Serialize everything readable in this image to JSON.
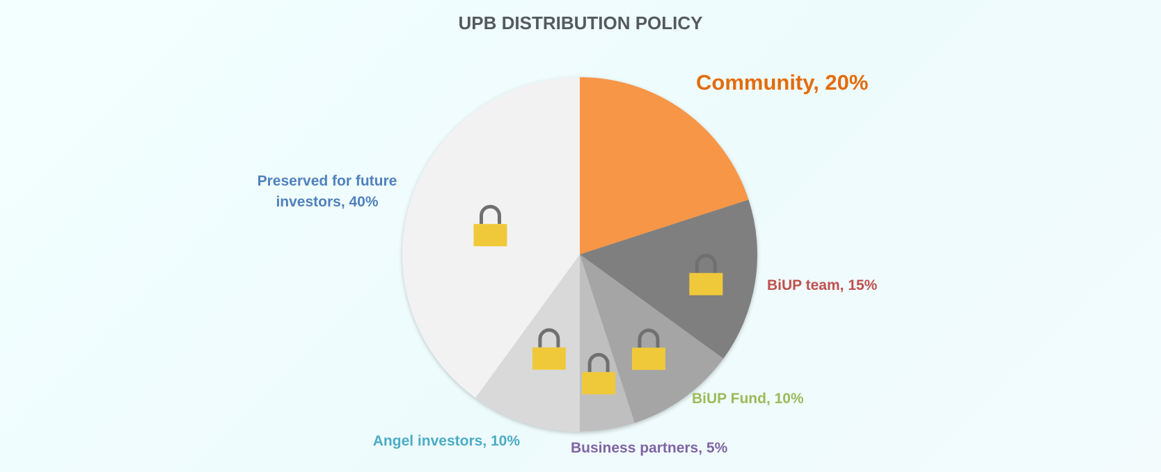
{
  "chart_data": {
    "type": "pie",
    "title": "UPB DISTRIBUTION POLICY",
    "start_angle_deg": 0,
    "direction": "clockwise",
    "slices": [
      {
        "name": "Community",
        "value": 20,
        "label_lines": [
          "Community, 20%"
        ],
        "color": "#f79646",
        "label_color": "#e36c0a",
        "locked": false,
        "emphasis": true
      },
      {
        "name": "BiUP team",
        "value": 15,
        "label_lines": [
          "BiUP team, 15%"
        ],
        "color": "#7f7f7f",
        "label_color": "#c0504d",
        "locked": true
      },
      {
        "name": "BiUP Fund",
        "value": 10,
        "label_lines": [
          "BiUP Fund, 10%"
        ],
        "color": "#a5a5a5",
        "label_color": "#9bbb59",
        "locked": true
      },
      {
        "name": "Business partners",
        "value": 5,
        "label_lines": [
          "Business partners, 5%"
        ],
        "color": "#bfbfbf",
        "label_color": "#8064a2",
        "locked": true
      },
      {
        "name": "Angel investors",
        "value": 10,
        "label_lines": [
          "Angel investors, 10%"
        ],
        "color": "#d9d9d9",
        "label_color": "#4bacc6",
        "locked": true
      },
      {
        "name": "Preserved for future investors",
        "value": 40,
        "label_lines": [
          "Preserved for future",
          "investors, 40%"
        ],
        "color": "#f2f2f2",
        "label_color": "#4f81bd",
        "locked": true
      }
    ],
    "lock_icon": "padlock-icon",
    "lock_color": "#f0c93a",
    "shackle_color": "#707070"
  }
}
